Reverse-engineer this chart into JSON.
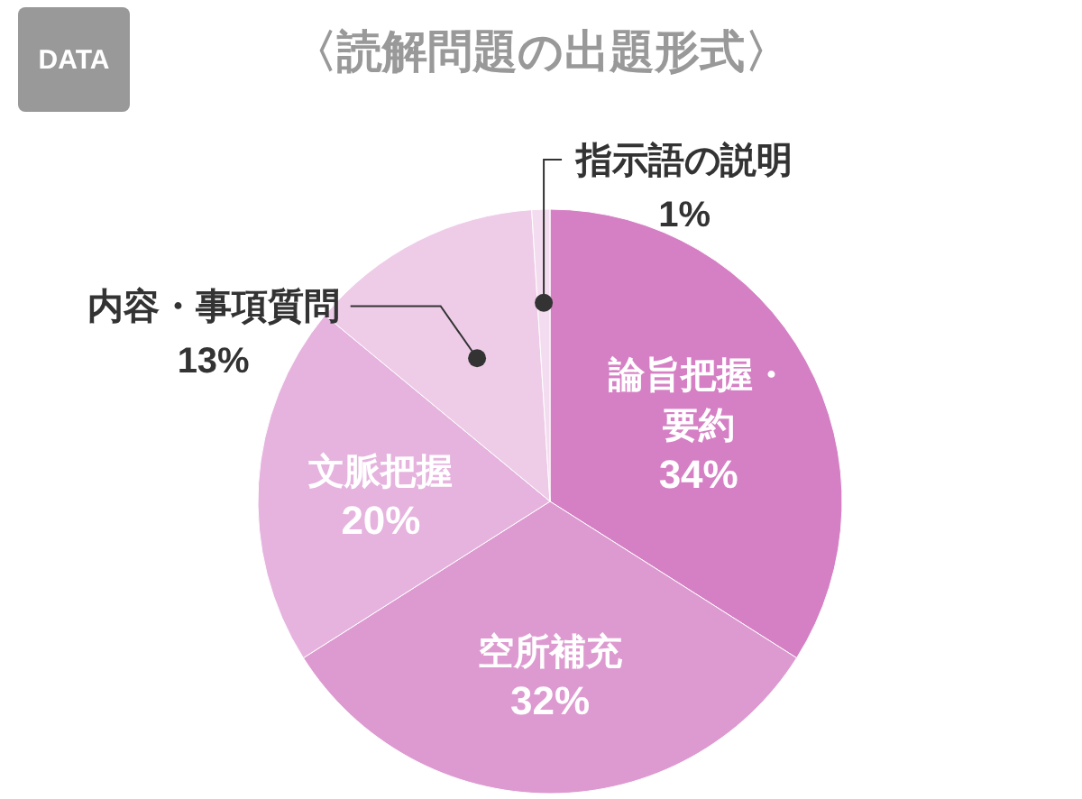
{
  "chart_data": {
    "type": "pie",
    "title": "〈読解問題の出題形式〉",
    "annotations": [
      "DATA"
    ],
    "categories": [
      "論旨把握・要約",
      "空所補充",
      "文脈把握",
      "内容・事項質問",
      "指示語の説明"
    ],
    "values": [
      34,
      32,
      20,
      13,
      1
    ],
    "value_labels": [
      "34%",
      "32%",
      "20%",
      "13%",
      "1%"
    ],
    "colors": [
      "#d580c4",
      "#dd9ad0",
      "#e5b3de",
      "#eecce8",
      "#f3dcef"
    ],
    "legend": false
  }
}
